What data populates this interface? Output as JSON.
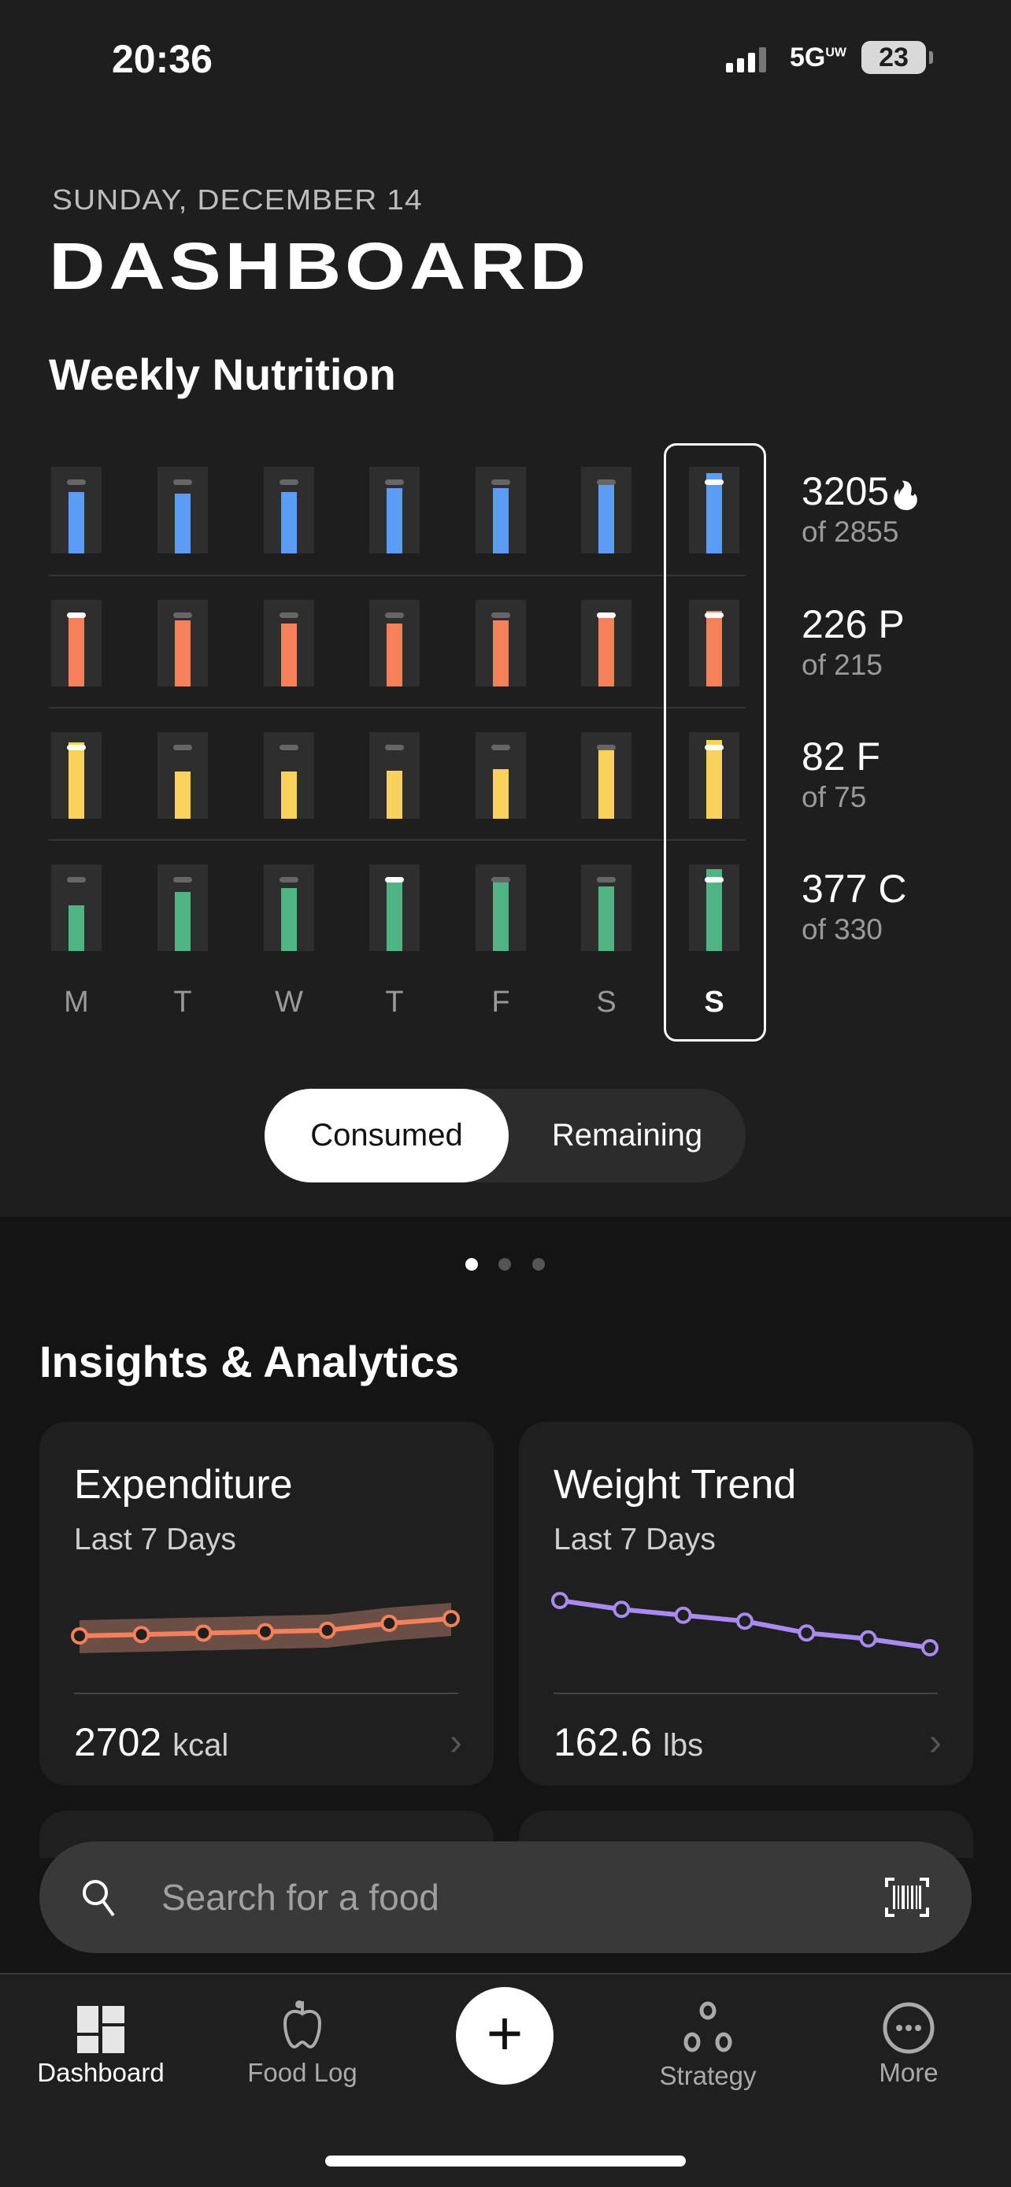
{
  "status_bar": {
    "time": "20:36",
    "network": "5G",
    "network_sup": "UW",
    "battery": "23"
  },
  "header": {
    "date": "SUNDAY, DECEMBER 14",
    "title": "DASHBOARD"
  },
  "weekly": {
    "title": "Weekly Nutrition",
    "days": [
      "M",
      "T",
      "W",
      "T",
      "F",
      "S",
      "S"
    ],
    "selected_day_index": 6,
    "macros": [
      {
        "name": "calories",
        "color": "#5b9cf5",
        "value": "3205",
        "icon": "flame-icon",
        "goal": "of 2855",
        "percent_of_goal": [
          0.85,
          0.83,
          0.85,
          0.91,
          0.91,
          0.99,
          1.12
        ]
      },
      {
        "name": "protein",
        "color": "#f5805a",
        "value": "226 P",
        "goal": "of 215",
        "percent_of_goal": [
          1.01,
          0.92,
          0.88,
          0.88,
          0.92,
          1.01,
          1.05
        ]
      },
      {
        "name": "fat",
        "color": "#f9d25b",
        "value": "82 F",
        "goal": "of 75",
        "percent_of_goal": [
          1.06,
          0.66,
          0.66,
          0.67,
          0.69,
          0.95,
          1.09
        ]
      },
      {
        "name": "carbs",
        "color": "#4fb584",
        "value": "377 C",
        "goal": "of 330",
        "percent_of_goal": [
          0.63,
          0.82,
          0.88,
          1.0,
          0.97,
          0.9,
          1.14
        ]
      }
    ],
    "toggle": {
      "consumed": "Consumed",
      "remaining": "Remaining",
      "active": "consumed"
    }
  },
  "pager": {
    "count": 3,
    "active": 0
  },
  "insights": {
    "title": "Insights & Analytics",
    "cards": [
      {
        "title": "Expenditure",
        "subtitle": "Last 7 Days",
        "value": "2702",
        "unit": "kcal",
        "color": "#f5805a",
        "trend": [
          2640,
          2645,
          2650,
          2655,
          2660,
          2685,
          2702
        ]
      },
      {
        "title": "Weight Trend",
        "subtitle": "Last 7 Days",
        "value": "162.6",
        "unit": "lbs",
        "color": "#a98af0",
        "trend": [
          164.2,
          163.9,
          163.7,
          163.5,
          163.1,
          162.9,
          162.6
        ]
      }
    ]
  },
  "search": {
    "placeholder": "Search for a food"
  },
  "tabs": [
    {
      "label": "Dashboard",
      "icon": "dashboard-icon",
      "active": true
    },
    {
      "label": "Food Log",
      "icon": "apple-icon"
    },
    {
      "label": "Strategy",
      "icon": "strategy-icon"
    },
    {
      "label": "More",
      "icon": "more-icon"
    }
  ]
}
